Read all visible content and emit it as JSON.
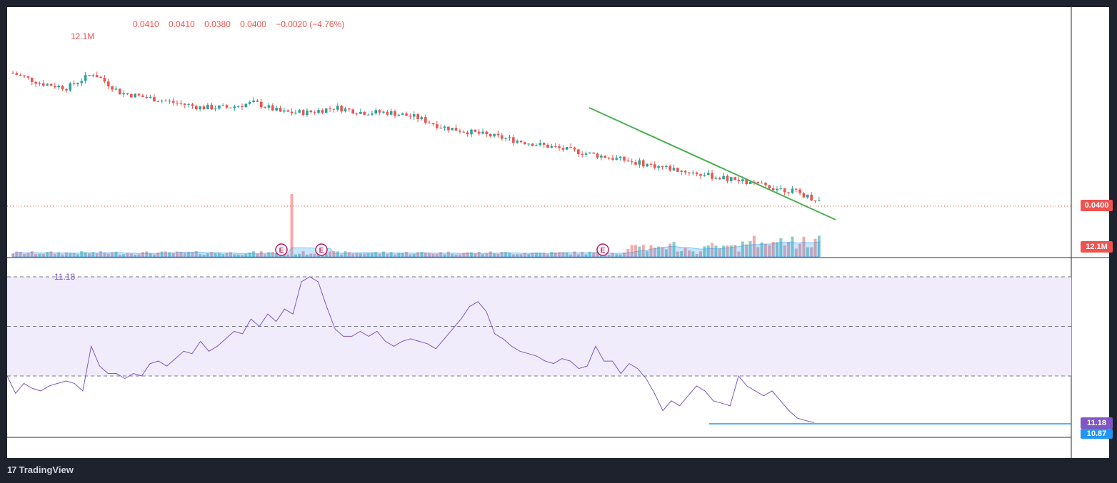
{
  "legend": {
    "open": "0.0410",
    "high": "0.0410",
    "low": "0.0380",
    "close": "0.0400",
    "change": "−0.0020 (−4.76%)",
    "volume_label": "12.1M"
  },
  "rsi_label": "11.18",
  "price_axis": {
    "last_price": "0.0400",
    "last_volume": "12.1M"
  },
  "rsi_axis": {
    "rsi_value": "11.18",
    "level_value": "10.87"
  },
  "earnings_markers": [
    "E",
    "E",
    "E"
  ],
  "brand": {
    "name": "TradingView"
  },
  "colors": {
    "up": "#26a69a",
    "down": "#ef5350",
    "trendline": "#4caf50",
    "rsi": "#7e57c2",
    "rsi_band": "#f1ecfb",
    "support": "#2196f3"
  },
  "chart_data": [
    {
      "type": "candlestick",
      "description": "Price candles trending down from ~0.075 to 0.0400",
      "x": "bar index 0-211",
      "series": [
        {
          "name": "Price",
          "close_path": [
            0.066,
            0.064,
            0.063,
            0.066,
            0.062,
            0.061,
            0.06,
            0.059,
            0.059,
            0.06,
            0.058,
            0.058,
            0.059,
            0.058,
            0.058,
            0.057,
            0.055,
            0.054,
            0.053,
            0.052,
            0.051,
            0.05,
            0.049,
            0.048,
            0.047,
            0.046,
            0.045,
            0.044,
            0.043,
            0.042,
            0.04
          ]
        }
      ],
      "last_close": 0.04,
      "annotations": [
        "downward support trendline",
        "dotted last-price line at 0.0400"
      ]
    },
    {
      "type": "bar",
      "name": "Volume",
      "last_value": "12.1M",
      "notes": "one large spike near bar 75; increasing volume near end"
    },
    {
      "type": "line",
      "name": "RSI",
      "ylim": [
        0,
        100
      ],
      "levels": [
        70,
        50,
        30
      ],
      "last_value": 11.18,
      "horizontal_level": 10.87,
      "values": [
        30,
        23,
        27,
        25,
        24,
        26,
        27,
        28,
        27,
        24,
        42,
        34,
        31,
        31,
        29,
        31,
        30,
        35,
        36,
        34,
        37,
        40,
        39,
        44,
        40,
        42,
        45,
        48,
        47,
        53,
        50,
        55,
        52,
        57,
        55,
        68,
        70,
        68,
        58,
        49,
        46,
        46,
        48,
        46,
        48,
        44,
        42,
        44,
        45,
        44,
        43,
        41,
        45,
        49,
        53,
        58,
        60,
        56,
        47,
        45,
        42,
        40,
        39,
        38,
        36,
        35,
        37,
        36,
        33,
        34,
        42,
        36,
        36,
        31,
        35,
        33,
        29,
        23,
        16,
        20,
        18,
        22,
        26,
        24,
        20,
        19,
        18,
        30,
        26,
        24,
        22,
        24,
        20,
        16,
        13,
        12,
        11.18
      ]
    }
  ]
}
